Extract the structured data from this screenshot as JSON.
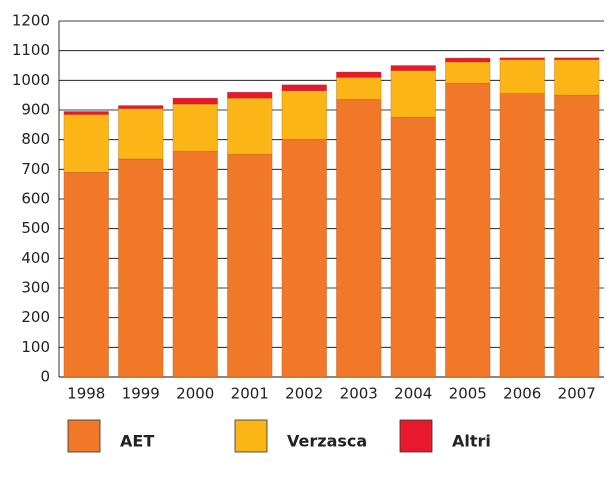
{
  "chart_data": {
    "type": "stacked-bar",
    "categories": [
      "1998",
      "1999",
      "2000",
      "2001",
      "2002",
      "2003",
      "2004",
      "2005",
      "2006",
      "2007"
    ],
    "series": [
      {
        "name": "AET",
        "color": "#f07828",
        "values": [
          690,
          735,
          760,
          750,
          800,
          935,
          875,
          990,
          955,
          950
        ]
      },
      {
        "name": "Verzasca",
        "color": "#fbb516",
        "values": [
          195,
          170,
          160,
          190,
          165,
          75,
          158,
          72,
          115,
          120
        ]
      },
      {
        "name": "Altri",
        "color": "#e8192c",
        "values": [
          10,
          10,
          20,
          20,
          20,
          18,
          17,
          13,
          6,
          6
        ]
      }
    ],
    "ylim": [
      0,
      1200
    ],
    "yticks": [
      0,
      100,
      200,
      300,
      400,
      500,
      600,
      700,
      800,
      900,
      1000,
      1100,
      1200
    ],
    "grid": true
  }
}
